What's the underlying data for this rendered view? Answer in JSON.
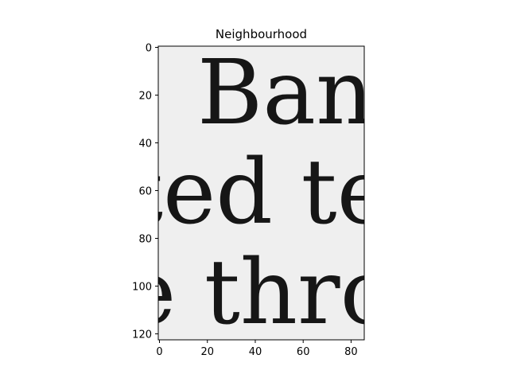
{
  "figure": {
    "title": "Neighbourhood"
  },
  "chart_data": {
    "type": "heatmap",
    "colormap": "gray",
    "image_width": 86,
    "image_height": 123,
    "xlim": [
      -0.5,
      85.5
    ],
    "ylim": [
      122.5,
      -0.5
    ],
    "x_ticks": [
      0,
      20,
      40,
      60,
      80
    ],
    "y_ticks": [
      0,
      20,
      40,
      60,
      80,
      100,
      120
    ],
    "x_tick_labels": [
      "0",
      "20",
      "40",
      "60",
      "80"
    ],
    "y_tick_labels": [
      "0",
      "20",
      "40",
      "60",
      "80",
      "100",
      "120"
    ],
    "background_color": "#efefef",
    "ink_color": "#161616",
    "content_lines": [
      "Banl",
      "ted te",
      "e thro"
    ]
  }
}
